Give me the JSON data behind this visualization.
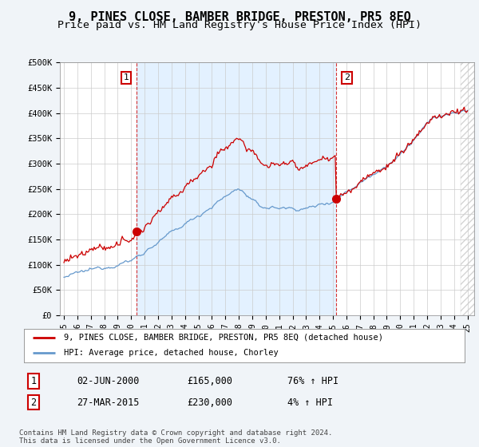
{
  "title": "9, PINES CLOSE, BAMBER BRIDGE, PRESTON, PR5 8EQ",
  "subtitle": "Price paid vs. HM Land Registry's House Price Index (HPI)",
  "ylim": [
    0,
    500000
  ],
  "yticks": [
    0,
    50000,
    100000,
    150000,
    200000,
    250000,
    300000,
    350000,
    400000,
    450000,
    500000
  ],
  "ytick_labels": [
    "£0",
    "£50K",
    "£100K",
    "£150K",
    "£200K",
    "£250K",
    "£300K",
    "£350K",
    "£400K",
    "£450K",
    "£500K"
  ],
  "background_color": "#f0f4f8",
  "plot_bg_color": "#ffffff",
  "grid_color": "#cccccc",
  "sale1_date": 2000.42,
  "sale1_price": 165000,
  "sale1_label": "1",
  "sale2_date": 2015.23,
  "sale2_price": 230000,
  "sale2_label": "2",
  "sale1_info": "02-JUN-2000",
  "sale1_amount": "£165,000",
  "sale1_hpi": "76% ↑ HPI",
  "sale2_info": "27-MAR-2015",
  "sale2_amount": "£230,000",
  "sale2_hpi": "4% ↑ HPI",
  "legend_line1": "9, PINES CLOSE, BAMBER BRIDGE, PRESTON, PR5 8EQ (detached house)",
  "legend_line2": "HPI: Average price, detached house, Chorley",
  "footer": "Contains HM Land Registry data © Crown copyright and database right 2024.\nThis data is licensed under the Open Government Licence v3.0.",
  "red_color": "#cc0000",
  "blue_color": "#6699cc",
  "shade_color": "#ddeeff",
  "title_fontsize": 11,
  "subtitle_fontsize": 9.5,
  "xmin": 1995,
  "xmax": 2025,
  "future_start": 2024.5
}
